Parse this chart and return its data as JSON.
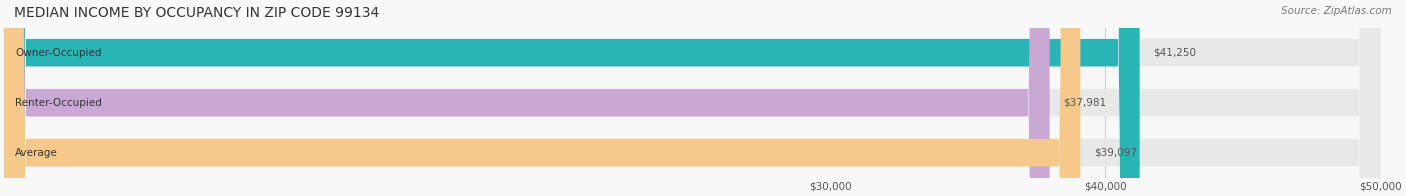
{
  "title": "MEDIAN INCOME BY OCCUPANCY IN ZIP CODE 99134",
  "source": "Source: ZipAtlas.com",
  "categories": [
    "Owner-Occupied",
    "Renter-Occupied",
    "Average"
  ],
  "values": [
    41250,
    37981,
    39097
  ],
  "bar_colors": [
    "#2ab5b5",
    "#c9a8d4",
    "#f5c98a"
  ],
  "bar_edge_colors": [
    "#2ab5b5",
    "#c9a8d4",
    "#f5c98a"
  ],
  "bg_colors": [
    "#f0f0f0",
    "#f0f0f0",
    "#f0f0f0"
  ],
  "value_labels": [
    "$41,250",
    "$37,981",
    "$39,097"
  ],
  "xlim": [
    0,
    50000
  ],
  "xticks": [
    30000,
    40000,
    50000
  ],
  "xtick_labels": [
    "$30,000",
    "$40,000",
    "$50,000"
  ],
  "title_fontsize": 10,
  "bar_height": 0.55,
  "figsize": [
    14.06,
    1.96
  ],
  "dpi": 100
}
